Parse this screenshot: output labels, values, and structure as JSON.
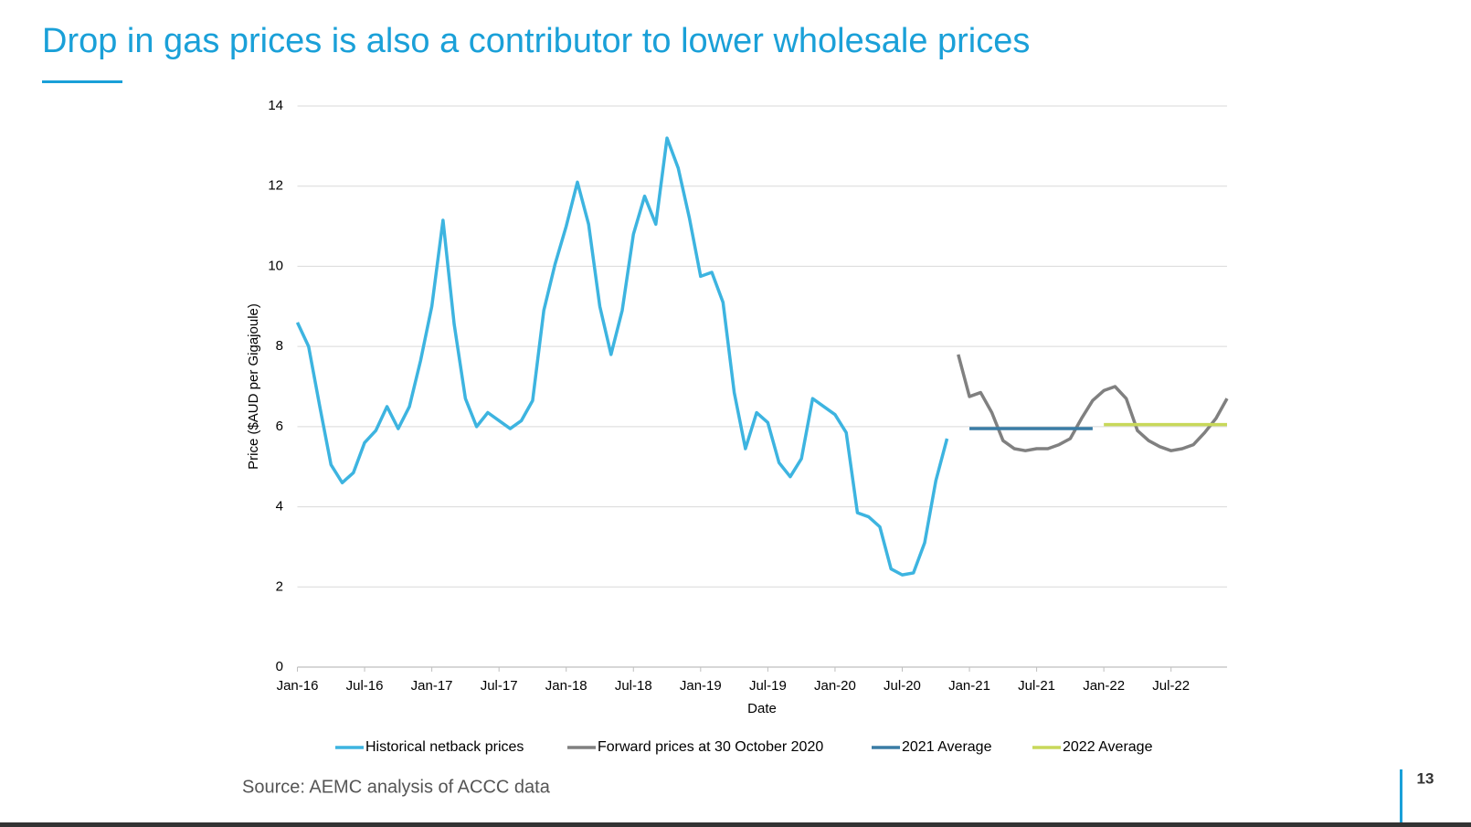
{
  "chart_data": {
    "type": "line",
    "title": "Drop in gas prices is also a contributor to lower wholesale prices",
    "x_label": "Date",
    "y_label": "Price ($AUD per Gigajoule)",
    "source": "Source: AEMC analysis of ACCC data",
    "categories": [
      "Jan-16",
      null,
      null,
      null,
      null,
      null,
      "Jul-16",
      null,
      null,
      null,
      null,
      null,
      "Jan-17",
      null,
      null,
      null,
      null,
      null,
      "Jul-17",
      null,
      null,
      null,
      null,
      null,
      "Jan-18",
      null,
      null,
      null,
      null,
      null,
      "Jul-18",
      null,
      null,
      null,
      null,
      null,
      "Jan-19",
      null,
      null,
      null,
      null,
      null,
      "Jul-19",
      null,
      null,
      null,
      null,
      null,
      "Jan-20",
      null,
      null,
      null,
      null,
      null,
      "Jul-20",
      null,
      null,
      null,
      null,
      null,
      "Jan-21",
      null,
      null,
      null,
      null,
      null,
      "Jul-21",
      null,
      null,
      null,
      null,
      null,
      "Jan-22",
      null,
      null,
      null,
      null,
      null,
      "Jul-22",
      null,
      null,
      null,
      null,
      null
    ],
    "ylim": [
      0,
      14
    ],
    "yticks": [
      0,
      2,
      4,
      6,
      8,
      10,
      12,
      14
    ],
    "grid": true,
    "legend": "bottom",
    "series": [
      {
        "name": "Historical netback prices",
        "color": "#3db4e0",
        "values": [
          8.6,
          8.0,
          6.5,
          5.05,
          4.6,
          4.85,
          5.6,
          5.9,
          6.5,
          5.95,
          6.5,
          7.65,
          9.0,
          11.15,
          8.55,
          6.7,
          6.0,
          6.35,
          6.15,
          5.95,
          6.15,
          6.65,
          8.9,
          10.05,
          11.0,
          12.1,
          11.05,
          9.0,
          7.8,
          8.9,
          10.8,
          11.75,
          11.05,
          13.2,
          12.45,
          11.2,
          9.75,
          9.85,
          9.1,
          6.85,
          5.45,
          6.35,
          6.1,
          5.1,
          4.75,
          5.2,
          6.7,
          6.5,
          6.3,
          5.85,
          3.85,
          3.75,
          3.5,
          2.45,
          2.3,
          2.35,
          3.1,
          4.65,
          5.7,
          null,
          null,
          null,
          null,
          null,
          null,
          null,
          null,
          null,
          null,
          null,
          null,
          null,
          null,
          null,
          null,
          null,
          null,
          null,
          null,
          null,
          null,
          null,
          null,
          null
        ]
      },
      {
        "name": "Forward prices at 30 October 2020",
        "color": "#808080",
        "values": [
          null,
          null,
          null,
          null,
          null,
          null,
          null,
          null,
          null,
          null,
          null,
          null,
          null,
          null,
          null,
          null,
          null,
          null,
          null,
          null,
          null,
          null,
          null,
          null,
          null,
          null,
          null,
          null,
          null,
          null,
          null,
          null,
          null,
          null,
          null,
          null,
          null,
          null,
          null,
          null,
          null,
          null,
          null,
          null,
          null,
          null,
          null,
          null,
          null,
          null,
          null,
          null,
          null,
          null,
          null,
          null,
          null,
          null,
          null,
          7.8,
          6.75,
          6.85,
          6.35,
          5.65,
          5.45,
          5.4,
          5.45,
          5.45,
          5.55,
          5.7,
          6.2,
          6.65,
          6.9,
          7.0,
          6.7,
          5.9,
          5.65,
          5.5,
          5.4,
          5.45,
          5.55,
          5.85,
          6.2,
          6.7
        ]
      },
      {
        "name": "2021 Average",
        "color": "#3a7ca5",
        "values": [
          null,
          null,
          null,
          null,
          null,
          null,
          null,
          null,
          null,
          null,
          null,
          null,
          null,
          null,
          null,
          null,
          null,
          null,
          null,
          null,
          null,
          null,
          null,
          null,
          null,
          null,
          null,
          null,
          null,
          null,
          null,
          null,
          null,
          null,
          null,
          null,
          null,
          null,
          null,
          null,
          null,
          null,
          null,
          null,
          null,
          null,
          null,
          null,
          null,
          null,
          null,
          null,
          null,
          null,
          null,
          null,
          null,
          null,
          null,
          null,
          5.95,
          5.95,
          5.95,
          5.95,
          5.95,
          5.95,
          5.95,
          5.95,
          5.95,
          5.95,
          5.95,
          5.95,
          null,
          null,
          null,
          null,
          null,
          null,
          null,
          null,
          null,
          null,
          null,
          null
        ]
      },
      {
        "name": "2022 Average",
        "color": "#c8d85a",
        "values": [
          null,
          null,
          null,
          null,
          null,
          null,
          null,
          null,
          null,
          null,
          null,
          null,
          null,
          null,
          null,
          null,
          null,
          null,
          null,
          null,
          null,
          null,
          null,
          null,
          null,
          null,
          null,
          null,
          null,
          null,
          null,
          null,
          null,
          null,
          null,
          null,
          null,
          null,
          null,
          null,
          null,
          null,
          null,
          null,
          null,
          null,
          null,
          null,
          null,
          null,
          null,
          null,
          null,
          null,
          null,
          null,
          null,
          null,
          null,
          null,
          null,
          null,
          null,
          null,
          null,
          null,
          null,
          null,
          null,
          null,
          null,
          null,
          6.05,
          6.05,
          6.05,
          6.05,
          6.05,
          6.05,
          6.05,
          6.05,
          6.05,
          6.05,
          6.05,
          6.05
        ]
      }
    ]
  },
  "page_number": 13
}
